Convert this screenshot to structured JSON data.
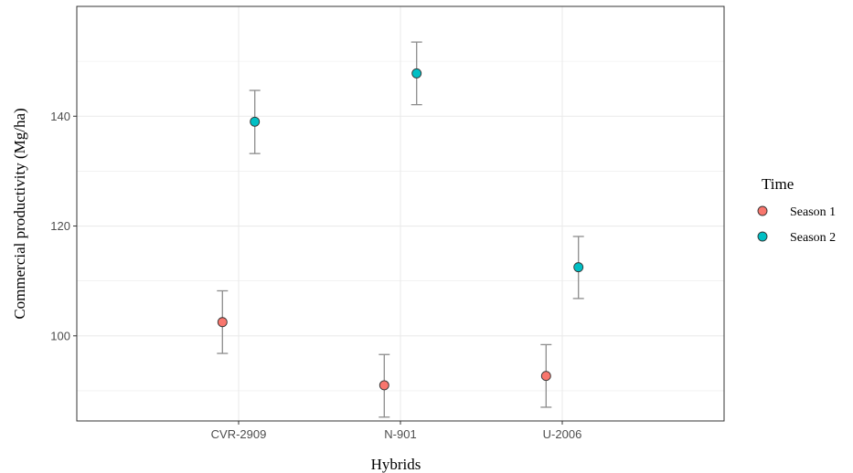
{
  "chart_data": {
    "type": "scatter",
    "xlabel": "Hybrids",
    "ylabel": "Commercial productivity (Mg/ha)",
    "categories": [
      "CVR-2909",
      "N-901",
      "U-2006"
    ],
    "ylim": [
      84.5,
      160
    ],
    "yticks": [
      100,
      120,
      140
    ],
    "grid": true,
    "legend": {
      "title": "Time",
      "placement": "right"
    },
    "series": [
      {
        "name": "Season 1",
        "color": "#F8766D",
        "values": [
          102.5,
          91.0,
          92.7
        ],
        "err_low": [
          96.8,
          85.2,
          87.0
        ],
        "err_high": [
          108.2,
          96.6,
          98.4
        ]
      },
      {
        "name": "Season 2",
        "color": "#00BFC4",
        "values": [
          139.0,
          147.8,
          112.5
        ],
        "err_low": [
          133.2,
          142.1,
          106.8
        ],
        "err_high": [
          144.7,
          153.5,
          118.1
        ]
      }
    ],
    "errorbar_color": "#8c8c8c"
  }
}
